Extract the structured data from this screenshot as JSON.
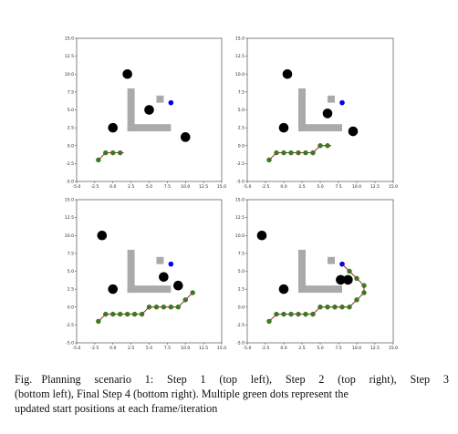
{
  "chart_data": [
    {
      "type": "scatter",
      "panel": "Step 1",
      "xlim": [
        -5,
        15
      ],
      "ylim": [
        -5,
        15
      ],
      "xticks": [
        "-5.0",
        "-2.5",
        "0.0",
        "2.5",
        "5.0",
        "7.5",
        "10.0",
        "12.5",
        "15.0"
      ],
      "yticks": [
        "-5.0",
        "-2.5",
        "0.0",
        "2.5",
        "5.0",
        "7.5",
        "10.0",
        "12.5",
        "15.0"
      ],
      "path": [
        [
          -2.0,
          -2.0
        ],
        [
          -1.0,
          -1.0
        ],
        [
          0.0,
          -1.0
        ],
        [
          1.0,
          -1.0
        ],
        [
          1.5,
          -1.0
        ]
      ],
      "green_points": [
        [
          -2.0,
          -2.0
        ],
        [
          -1.0,
          -1.0
        ],
        [
          0.0,
          -1.0
        ],
        [
          1.0,
          -1.0
        ]
      ],
      "goal": [
        8.0,
        6.0
      ],
      "obstacles": [
        [
          2.0,
          10.0
        ],
        [
          0.0,
          2.5
        ],
        [
          5.0,
          5.0
        ],
        [
          10.0,
          1.2
        ]
      ],
      "walls": [
        {
          "x": [
            2.0,
            3.0
          ],
          "y": [
            2.0,
            8.0
          ]
        },
        {
          "x": [
            2.0,
            8.0
          ],
          "y": [
            2.0,
            3.0
          ]
        },
        {
          "x": [
            6.0,
            7.0
          ],
          "y": [
            6.0,
            7.0
          ]
        }
      ],
      "colors": {
        "path": "#8b1a1a",
        "points": "#3d7a1f",
        "goal": "#0000ee",
        "obstacle": "#000000",
        "wall": "#aaaaaa"
      }
    },
    {
      "type": "scatter",
      "panel": "Step 2",
      "xlim": [
        -5,
        15
      ],
      "ylim": [
        -5,
        15
      ],
      "xticks": [
        "-5.0",
        "-2.5",
        "0.0",
        "2.5",
        "5.0",
        "7.5",
        "10.0",
        "12.5",
        "15.0"
      ],
      "yticks": [
        "-5.0",
        "-2.5",
        "0.0",
        "2.5",
        "5.0",
        "7.5",
        "10.0",
        "12.5",
        "15.0"
      ],
      "path": [
        [
          -2.0,
          -2.0
        ],
        [
          -1.0,
          -1.0
        ],
        [
          0.0,
          -1.0
        ],
        [
          1.0,
          -1.0
        ],
        [
          2.0,
          -1.0
        ],
        [
          3.0,
          -1.0
        ],
        [
          4.0,
          -1.0
        ],
        [
          5.0,
          0.0
        ],
        [
          6.0,
          0.0
        ],
        [
          6.5,
          0.0
        ]
      ],
      "green_points": [
        [
          -2.0,
          -2.0
        ],
        [
          -1.0,
          -1.0
        ],
        [
          0.0,
          -1.0
        ],
        [
          1.0,
          -1.0
        ],
        [
          2.0,
          -1.0
        ],
        [
          3.0,
          -1.0
        ],
        [
          4.0,
          -1.0
        ],
        [
          5.0,
          0.0
        ],
        [
          6.0,
          0.0
        ]
      ],
      "goal": [
        8.0,
        6.0
      ],
      "obstacles": [
        [
          0.5,
          10.0
        ],
        [
          0.0,
          2.5
        ],
        [
          6.0,
          4.5
        ],
        [
          9.5,
          2.0
        ]
      ],
      "walls": [
        {
          "x": [
            2.0,
            3.0
          ],
          "y": [
            2.0,
            8.0
          ]
        },
        {
          "x": [
            2.0,
            8.0
          ],
          "y": [
            2.0,
            3.0
          ]
        },
        {
          "x": [
            6.0,
            7.0
          ],
          "y": [
            6.0,
            7.0
          ]
        }
      ],
      "colors": {
        "path": "#8b1a1a",
        "points": "#3d7a1f",
        "goal": "#0000ee",
        "obstacle": "#000000",
        "wall": "#aaaaaa"
      }
    },
    {
      "type": "scatter",
      "panel": "Step 3",
      "xlim": [
        -5,
        15
      ],
      "ylim": [
        -5,
        15
      ],
      "xticks": [
        "-5.0",
        "-2.5",
        "0.0",
        "2.5",
        "5.0",
        "7.5",
        "10.0",
        "12.5",
        "15.0"
      ],
      "yticks": [
        "-5.0",
        "-2.5",
        "0.0",
        "2.5",
        "5.0",
        "7.5",
        "10.0",
        "12.5",
        "15.0"
      ],
      "path": [
        [
          -2.0,
          -2.0
        ],
        [
          -1.0,
          -1.0
        ],
        [
          0.0,
          -1.0
        ],
        [
          1.0,
          -1.0
        ],
        [
          2.0,
          -1.0
        ],
        [
          3.0,
          -1.0
        ],
        [
          4.0,
          -1.0
        ],
        [
          5.0,
          0.0
        ],
        [
          6.0,
          0.0
        ],
        [
          7.0,
          0.0
        ],
        [
          8.0,
          0.0
        ],
        [
          9.0,
          0.0
        ],
        [
          10.0,
          1.0
        ],
        [
          11.0,
          2.0
        ]
      ],
      "green_points": [
        [
          -2.0,
          -2.0
        ],
        [
          -1.0,
          -1.0
        ],
        [
          0.0,
          -1.0
        ],
        [
          1.0,
          -1.0
        ],
        [
          2.0,
          -1.0
        ],
        [
          3.0,
          -1.0
        ],
        [
          4.0,
          -1.0
        ],
        [
          5.0,
          0.0
        ],
        [
          6.0,
          0.0
        ],
        [
          7.0,
          0.0
        ],
        [
          8.0,
          0.0
        ],
        [
          9.0,
          0.0
        ],
        [
          10.0,
          1.0
        ],
        [
          11.0,
          2.0
        ]
      ],
      "goal": [
        8.0,
        6.0
      ],
      "obstacles": [
        [
          -1.5,
          10.0
        ],
        [
          0.0,
          2.5
        ],
        [
          7.0,
          4.2
        ],
        [
          9.0,
          3.0
        ]
      ],
      "walls": [
        {
          "x": [
            2.0,
            3.0
          ],
          "y": [
            2.0,
            8.0
          ]
        },
        {
          "x": [
            2.0,
            8.0
          ],
          "y": [
            2.0,
            3.0
          ]
        },
        {
          "x": [
            6.0,
            7.0
          ],
          "y": [
            6.0,
            7.0
          ]
        }
      ],
      "colors": {
        "path": "#8b1a1a",
        "points": "#3d7a1f",
        "goal": "#0000ee",
        "obstacle": "#000000",
        "wall": "#aaaaaa"
      }
    },
    {
      "type": "scatter",
      "panel": "Final Step 4",
      "xlim": [
        -5,
        15
      ],
      "ylim": [
        -5,
        15
      ],
      "xticks": [
        "-5.0",
        "-2.5",
        "0.0",
        "2.5",
        "5.0",
        "7.5",
        "10.0",
        "12.5",
        "15.0"
      ],
      "yticks": [
        "-5.0",
        "-2.5",
        "0.0",
        "2.5",
        "5.0",
        "7.5",
        "10.0",
        "12.5",
        "15.0"
      ],
      "path": [
        [
          -2.0,
          -2.0
        ],
        [
          -1.0,
          -1.0
        ],
        [
          0.0,
          -1.0
        ],
        [
          1.0,
          -1.0
        ],
        [
          2.0,
          -1.0
        ],
        [
          3.0,
          -1.0
        ],
        [
          4.0,
          -1.0
        ],
        [
          5.0,
          0.0
        ],
        [
          6.0,
          0.0
        ],
        [
          7.0,
          0.0
        ],
        [
          8.0,
          0.0
        ],
        [
          9.0,
          0.0
        ],
        [
          10.0,
          1.0
        ],
        [
          11.0,
          2.0
        ],
        [
          11.0,
          3.0
        ],
        [
          10.0,
          4.0
        ],
        [
          9.0,
          5.0
        ],
        [
          8.0,
          6.0
        ]
      ],
      "green_points": [
        [
          -2.0,
          -2.0
        ],
        [
          -1.0,
          -1.0
        ],
        [
          0.0,
          -1.0
        ],
        [
          1.0,
          -1.0
        ],
        [
          2.0,
          -1.0
        ],
        [
          3.0,
          -1.0
        ],
        [
          4.0,
          -1.0
        ],
        [
          5.0,
          0.0
        ],
        [
          6.0,
          0.0
        ],
        [
          7.0,
          0.0
        ],
        [
          8.0,
          0.0
        ],
        [
          9.0,
          0.0
        ],
        [
          10.0,
          1.0
        ],
        [
          11.0,
          2.0
        ],
        [
          11.0,
          3.0
        ],
        [
          10.0,
          4.0
        ],
        [
          9.0,
          5.0
        ]
      ],
      "goal": [
        8.0,
        6.0
      ],
      "obstacles": [
        [
          -3.0,
          10.0
        ],
        [
          0.0,
          2.5
        ],
        [
          7.8,
          3.8
        ],
        [
          8.8,
          3.8
        ]
      ],
      "walls": [
        {
          "x": [
            2.0,
            3.0
          ],
          "y": [
            2.0,
            8.0
          ]
        },
        {
          "x": [
            2.0,
            8.0
          ],
          "y": [
            2.0,
            3.0
          ]
        },
        {
          "x": [
            6.0,
            7.0
          ],
          "y": [
            6.0,
            7.0
          ]
        }
      ],
      "colors": {
        "path": "#8b1a1a",
        "points": "#3d7a1f",
        "goal": "#0000ee",
        "obstacle": "#000000",
        "wall": "#aaaaaa"
      }
    }
  ],
  "caption": {
    "label": "Fig.",
    "line1": "Planning scenario 1: Step 1 (top left), Step 2 (top right), Step 3",
    "line2": "(bottom left), Final Step 4 (bottom right). Multiple green dots represent the",
    "line3": "updated start positions at each frame/iteration"
  }
}
